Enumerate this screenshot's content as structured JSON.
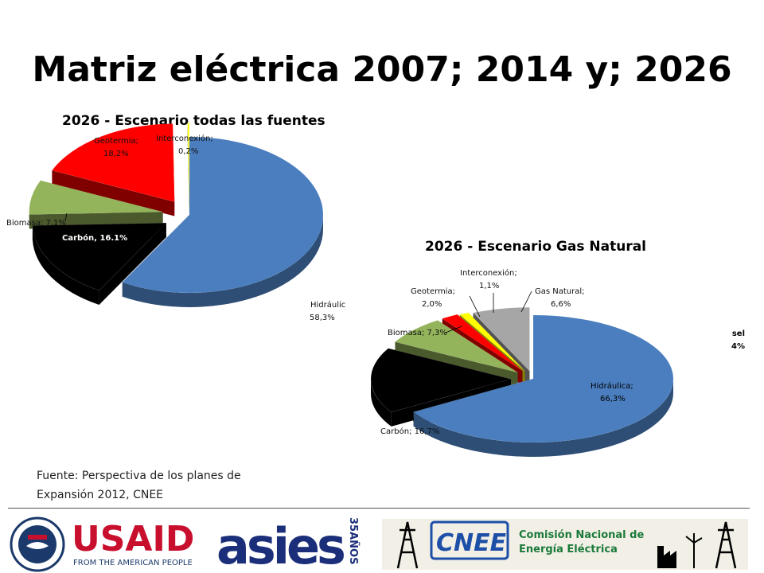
{
  "slide": {
    "title": "Matriz eléctrica 2007; 2014 y; 2026",
    "source_line1": "Fuente: Perspectiva de los planes de",
    "source_line2": "Expansión 2012, CNEE",
    "side_note_line1": "sel",
    "side_note_line2": "4%"
  },
  "chart_data": [
    {
      "type": "pie",
      "title": "2026 - Escenario todas las fuentes",
      "slices": [
        {
          "name": "Hidráulica",
          "value": 58.3,
          "label_name": "Hidráulic",
          "label_value": "58,3%",
          "color": "#4a7ebf"
        },
        {
          "name": "Carbón",
          "value": 16.1,
          "label_name": "Carbón, 16.1%",
          "label_value": "",
          "color": "#000000"
        },
        {
          "name": "Biomasa",
          "value": 7.1,
          "label_name": "Biomasa; 7,1%",
          "label_value": "",
          "color": "#93b45a"
        },
        {
          "name": "Geotermia",
          "value": 18.2,
          "label_name": "Geotermia;",
          "label_value": "18,2%",
          "color": "#ff0000"
        },
        {
          "name": "Interconexión",
          "value": 0.2,
          "label_name": "Interconexión;",
          "label_value": "0,2%",
          "color": "#ffff00"
        }
      ]
    },
    {
      "type": "pie",
      "title": "2026 - Escenario Gas Natural",
      "slices": [
        {
          "name": "Hidráulica",
          "value": 66.3,
          "label_name": "Hidráulica;",
          "label_value": "66,3%",
          "color": "#4a7ebf"
        },
        {
          "name": "Carbón",
          "value": 16.7,
          "label_name": "Carbón; 16,7%",
          "label_value": "",
          "color": "#000000"
        },
        {
          "name": "Biomasa",
          "value": 7.3,
          "label_name": "Biomasa; 7,3%",
          "label_value": "",
          "color": "#93b45a"
        },
        {
          "name": "Geotermia",
          "value": 2.0,
          "label_name": "Geotermia;",
          "label_value": "2,0%",
          "color": "#ff0000"
        },
        {
          "name": "Interconexión",
          "value": 1.1,
          "label_name": "Interconexión;",
          "label_value": "1,1%",
          "color": "#ffff00"
        },
        {
          "name": "Gas Natural",
          "value": 6.6,
          "label_name": "Gas Natural;",
          "label_value": "6,6%",
          "color": "#a6a6a6"
        }
      ]
    }
  ],
  "footer": {
    "usaid_text": "USAID",
    "usaid_sub": "FROM THE AMERICAN PEOPLE",
    "asies_text": "asies",
    "asies_years": "35AÑOS",
    "cnee_text": "CNEE",
    "cnee_name_line1": "Comisión Nacional de",
    "cnee_name_line2": "Energía Eléctrica"
  }
}
